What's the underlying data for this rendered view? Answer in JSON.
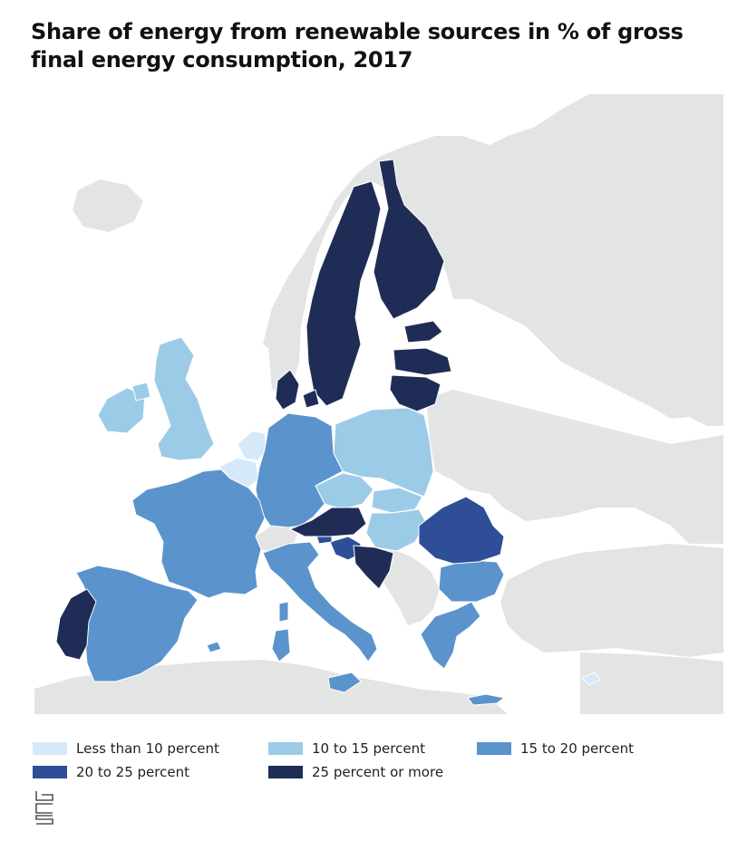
{
  "title": "Share of energy from renewable sources in % of gross final energy consumption, 2017",
  "colors": {
    "background_land": "#e3e4e4",
    "sea": "#ffffff",
    "lt10": "#d6e9f8",
    "10to15": "#9ccbe8",
    "15to20": "#5b93cd",
    "20to25": "#2f4e98",
    "25plus": "#1f2d56"
  },
  "legend": [
    {
      "label": "Less than 10 percent",
      "color_key": "lt10"
    },
    {
      "label": "10 to 15 percent",
      "color_key": "10to15"
    },
    {
      "label": "15 to 20 percent",
      "color_key": "15to20"
    },
    {
      "label": "20 to 25 percent",
      "color_key": "20to25"
    },
    {
      "label": "25 percent or more",
      "color_key": "25plus"
    }
  ],
  "logo_icon": "cbs-logo-icon"
}
